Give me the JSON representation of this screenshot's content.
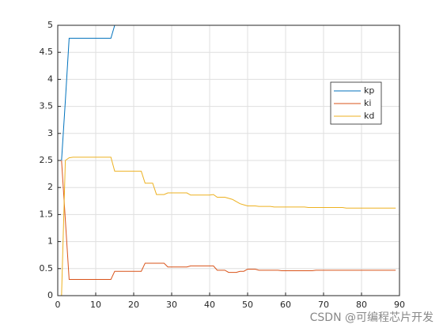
{
  "chart_data": {
    "type": "line",
    "x": [
      1,
      2,
      3,
      4,
      5,
      6,
      7,
      8,
      9,
      10,
      11,
      12,
      13,
      14,
      15,
      16,
      17,
      18,
      19,
      20,
      21,
      22,
      23,
      24,
      25,
      26,
      27,
      28,
      29,
      30,
      31,
      32,
      33,
      34,
      35,
      36,
      37,
      38,
      39,
      40,
      41,
      42,
      43,
      44,
      45,
      46,
      47,
      48,
      49,
      50,
      51,
      52,
      53,
      54,
      55,
      56,
      57,
      58,
      59,
      60,
      61,
      62,
      63,
      64,
      65,
      66,
      67,
      68,
      69,
      70,
      71,
      72,
      73,
      74,
      75,
      76,
      77,
      78,
      79,
      80,
      81,
      82,
      83,
      84,
      85,
      86,
      87,
      88,
      89
    ],
    "series": [
      {
        "name": "kp",
        "color": "#0072bd",
        "values": [
          2.5,
          3.6,
          4.76,
          4.76,
          4.76,
          4.76,
          4.76,
          4.76,
          4.76,
          4.76,
          4.76,
          4.76,
          4.76,
          4.76,
          5,
          5,
          5,
          5,
          5,
          5,
          5,
          5,
          5,
          5,
          5,
          5,
          5,
          5,
          5,
          5,
          5,
          5,
          5,
          5,
          5,
          5,
          5,
          5,
          5,
          5,
          5,
          5,
          5,
          5,
          5,
          5,
          5,
          5,
          5,
          5,
          5,
          5,
          5,
          5,
          5,
          5,
          5,
          5,
          5,
          5,
          5,
          5,
          5,
          5,
          5,
          5,
          5,
          5,
          5,
          5,
          5,
          5,
          5,
          5,
          5,
          5,
          5,
          5,
          5,
          5,
          5,
          5,
          5,
          5,
          5,
          5,
          5,
          5,
          5
        ]
      },
      {
        "name": "ki",
        "color": "#d95319",
        "values": [
          2.5,
          1.4,
          0.3,
          0.3,
          0.3,
          0.3,
          0.3,
          0.3,
          0.3,
          0.3,
          0.3,
          0.3,
          0.3,
          0.3,
          0.45,
          0.45,
          0.45,
          0.45,
          0.45,
          0.45,
          0.45,
          0.45,
          0.6,
          0.6,
          0.6,
          0.6,
          0.6,
          0.6,
          0.53,
          0.53,
          0.53,
          0.53,
          0.53,
          0.53,
          0.55,
          0.55,
          0.55,
          0.55,
          0.55,
          0.55,
          0.55,
          0.47,
          0.47,
          0.47,
          0.43,
          0.43,
          0.43,
          0.45,
          0.45,
          0.49,
          0.49,
          0.49,
          0.47,
          0.47,
          0.47,
          0.47,
          0.47,
          0.47,
          0.46,
          0.46,
          0.46,
          0.46,
          0.46,
          0.46,
          0.46,
          0.46,
          0.46,
          0.47,
          0.47,
          0.47,
          0.47,
          0.47,
          0.47,
          0.47,
          0.47,
          0.47,
          0.47,
          0.47,
          0.47,
          0.47,
          0.47,
          0.47,
          0.47,
          0.47,
          0.47,
          0.47,
          0.47,
          0.47,
          0.47
        ]
      },
      {
        "name": "kd",
        "color": "#edb120",
        "values": [
          0,
          2.5,
          2.55,
          2.56,
          2.56,
          2.56,
          2.56,
          2.56,
          2.56,
          2.56,
          2.56,
          2.56,
          2.56,
          2.56,
          2.3,
          2.3,
          2.3,
          2.3,
          2.3,
          2.3,
          2.3,
          2.3,
          2.08,
          2.08,
          2.08,
          1.87,
          1.87,
          1.87,
          1.9,
          1.9,
          1.9,
          1.9,
          1.9,
          1.9,
          1.86,
          1.86,
          1.86,
          1.86,
          1.86,
          1.86,
          1.87,
          1.82,
          1.82,
          1.82,
          1.8,
          1.78,
          1.74,
          1.7,
          1.68,
          1.66,
          1.66,
          1.66,
          1.65,
          1.65,
          1.65,
          1.65,
          1.64,
          1.64,
          1.64,
          1.64,
          1.64,
          1.64,
          1.64,
          1.64,
          1.64,
          1.63,
          1.63,
          1.63,
          1.63,
          1.63,
          1.63,
          1.63,
          1.63,
          1.63,
          1.63,
          1.62,
          1.62,
          1.62,
          1.62,
          1.62,
          1.62,
          1.62,
          1.62,
          1.62,
          1.62,
          1.62,
          1.62,
          1.62,
          1.62
        ]
      }
    ],
    "xlim": [
      0,
      90
    ],
    "xticks": [
      0,
      10,
      20,
      30,
      40,
      50,
      60,
      70,
      80,
      90
    ],
    "ylim": [
      0,
      5
    ],
    "yticks": [
      0,
      0.5,
      1,
      1.5,
      2,
      2.5,
      3,
      3.5,
      4,
      4.5,
      5
    ],
    "grid": true,
    "legend": "upper right"
  },
  "watermark": "CSDN @可编程芯片开发"
}
